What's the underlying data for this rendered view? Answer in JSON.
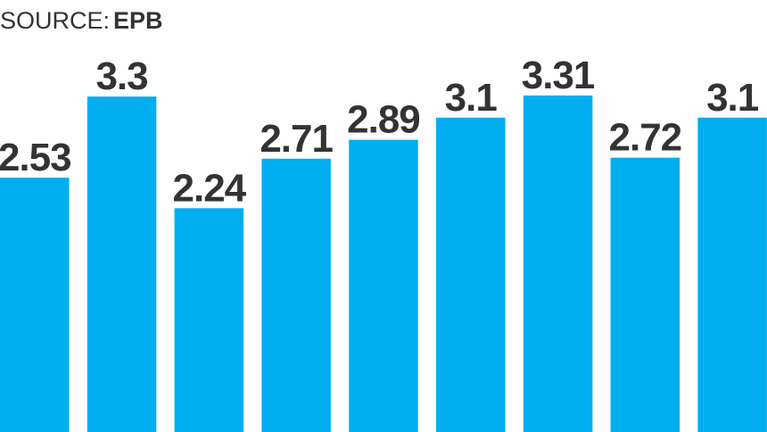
{
  "chart_data": {
    "type": "bar",
    "source_label": "SOURCE:",
    "source": "EPB",
    "values": [
      2.53,
      3.3,
      2.24,
      2.71,
      2.89,
      3.1,
      3.31,
      2.72,
      3.1
    ],
    "color": "#00aeef"
  }
}
